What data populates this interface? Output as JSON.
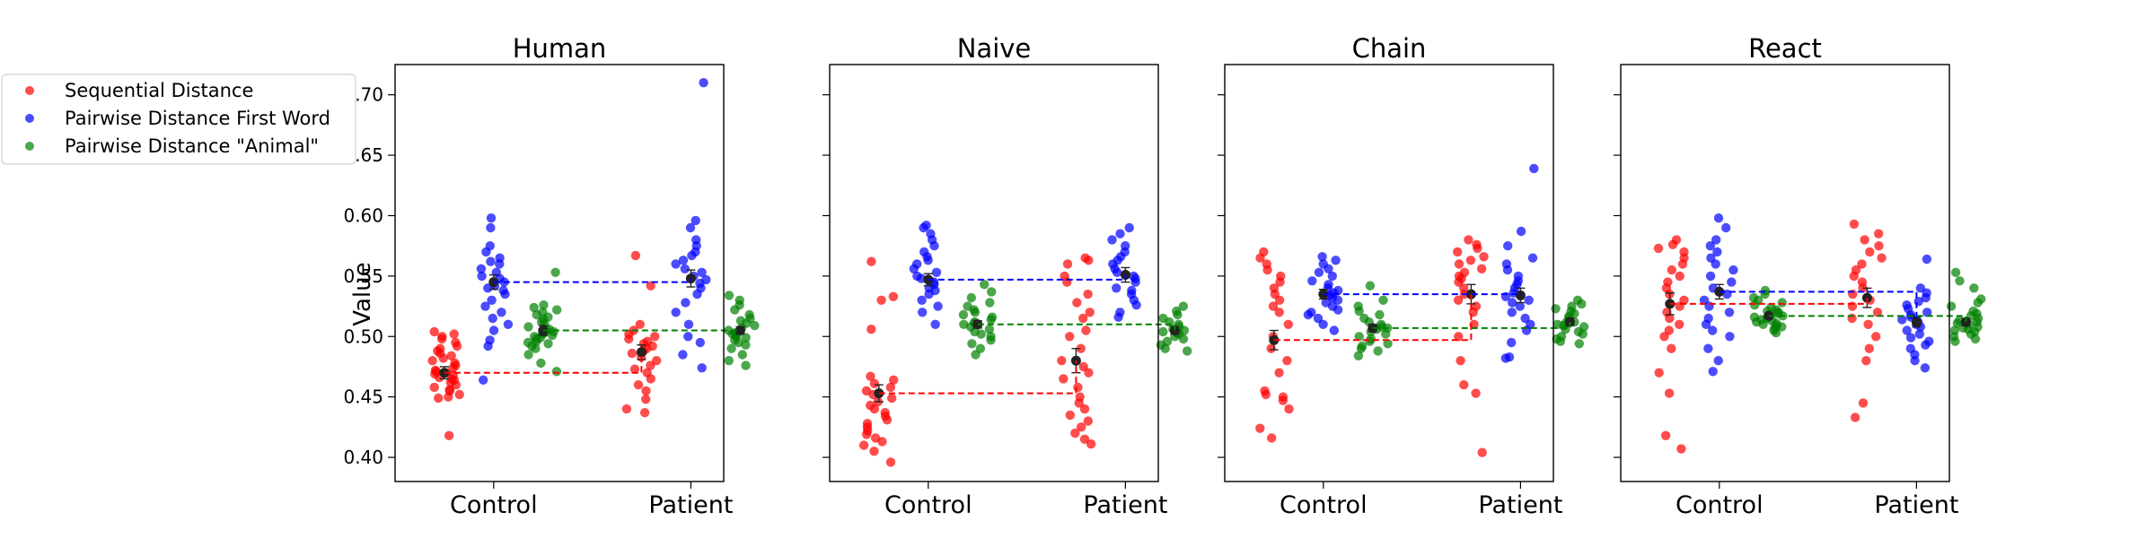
{
  "chart_data": {
    "type": "scatter",
    "ylabel": "Value",
    "ylim": [
      0.38,
      0.725
    ],
    "yticks": [
      0.4,
      0.45,
      0.5,
      0.55,
      0.6,
      0.65,
      0.7
    ],
    "ytick_labels": [
      "0.40",
      "0.45",
      "0.50",
      "0.55",
      "0.60",
      "0.65",
      "0.70"
    ],
    "categories": [
      "Control",
      "Patient"
    ],
    "legend": {
      "placement": "outside-left",
      "entries": [
        {
          "name": "Sequential Distance",
          "color": "#ff0000"
        },
        {
          "name": "Pairwise Distance First Word",
          "color": "#0000ff"
        },
        {
          "name": "Pairwise Distance \"Animal\"",
          "color": "#008000"
        }
      ]
    },
    "series_colors": [
      "#ff0000",
      "#0000ff",
      "#008000"
    ],
    "panels": [
      {
        "title": "Human",
        "groups": [
          {
            "category": "Control",
            "series": [
              {
                "mean": 0.47,
                "err": 0.005,
                "points": [
                  0.418,
                  0.449,
                  0.45,
                  0.452,
                  0.455,
                  0.456,
                  0.458,
                  0.46,
                  0.462,
                  0.464,
                  0.465,
                  0.466,
                  0.468,
                  0.469,
                  0.47,
                  0.471,
                  0.472,
                  0.474,
                  0.476,
                  0.478,
                  0.48,
                  0.482,
                  0.484,
                  0.486,
                  0.488,
                  0.49,
                  0.492,
                  0.495,
                  0.498,
                  0.5,
                  0.502,
                  0.504
                ]
              },
              {
                "mean": 0.545,
                "err": 0.006,
                "points": [
                  0.464,
                  0.492,
                  0.497,
                  0.505,
                  0.51,
                  0.515,
                  0.52,
                  0.525,
                  0.53,
                  0.535,
                  0.538,
                  0.54,
                  0.542,
                  0.545,
                  0.548,
                  0.55,
                  0.553,
                  0.556,
                  0.56,
                  0.562,
                  0.565,
                  0.57,
                  0.575,
                  0.59,
                  0.598
                ]
              },
              {
                "mean": 0.505,
                "err": 0.004,
                "points": [
                  0.471,
                  0.478,
                  0.485,
                  0.49,
                  0.492,
                  0.494,
                  0.495,
                  0.496,
                  0.498,
                  0.499,
                  0.5,
                  0.501,
                  0.502,
                  0.503,
                  0.504,
                  0.505,
                  0.506,
                  0.508,
                  0.51,
                  0.512,
                  0.514,
                  0.516,
                  0.518,
                  0.52,
                  0.522,
                  0.524,
                  0.526,
                  0.553
                ]
              }
            ]
          },
          {
            "category": "Patient",
            "series": [
              {
                "mean": 0.487,
                "err": 0.006,
                "points": [
                  0.437,
                  0.44,
                  0.448,
                  0.455,
                  0.46,
                  0.465,
                  0.47,
                  0.473,
                  0.476,
                  0.48,
                  0.483,
                  0.486,
                  0.488,
                  0.49,
                  0.492,
                  0.494,
                  0.496,
                  0.498,
                  0.5,
                  0.502,
                  0.505,
                  0.51,
                  0.542,
                  0.567
                ]
              },
              {
                "mean": 0.548,
                "err": 0.007,
                "points": [
                  0.474,
                  0.485,
                  0.495,
                  0.5,
                  0.51,
                  0.52,
                  0.528,
                  0.535,
                  0.54,
                  0.544,
                  0.547,
                  0.55,
                  0.553,
                  0.556,
                  0.56,
                  0.563,
                  0.567,
                  0.57,
                  0.575,
                  0.58,
                  0.59,
                  0.596,
                  0.71
                ]
              },
              {
                "mean": 0.505,
                "err": 0.003,
                "points": [
                  0.476,
                  0.48,
                  0.485,
                  0.49,
                  0.493,
                  0.495,
                  0.497,
                  0.499,
                  0.5,
                  0.501,
                  0.502,
                  0.503,
                  0.505,
                  0.507,
                  0.509,
                  0.511,
                  0.513,
                  0.515,
                  0.518,
                  0.522,
                  0.526,
                  0.53,
                  0.534
                ]
              }
            ]
          }
        ]
      },
      {
        "title": "Naive",
        "groups": [
          {
            "category": "Control",
            "series": [
              {
                "mean": 0.453,
                "err": 0.007,
                "points": [
                  0.396,
                  0.405,
                  0.41,
                  0.413,
                  0.416,
                  0.419,
                  0.422,
                  0.425,
                  0.428,
                  0.431,
                  0.434,
                  0.437,
                  0.44,
                  0.443,
                  0.446,
                  0.449,
                  0.452,
                  0.455,
                  0.458,
                  0.461,
                  0.464,
                  0.467,
                  0.506,
                  0.53,
                  0.533,
                  0.562
                ]
              },
              {
                "mean": 0.547,
                "err": 0.005,
                "points": [
                  0.51,
                  0.52,
                  0.525,
                  0.53,
                  0.535,
                  0.538,
                  0.54,
                  0.543,
                  0.545,
                  0.548,
                  0.55,
                  0.553,
                  0.556,
                  0.56,
                  0.563,
                  0.566,
                  0.57,
                  0.575,
                  0.58,
                  0.585,
                  0.59,
                  0.592
                ]
              },
              {
                "mean": 0.51,
                "err": 0.003,
                "points": [
                  0.485,
                  0.49,
                  0.494,
                  0.497,
                  0.5,
                  0.502,
                  0.504,
                  0.506,
                  0.508,
                  0.51,
                  0.511,
                  0.512,
                  0.514,
                  0.516,
                  0.518,
                  0.52,
                  0.522,
                  0.525,
                  0.528,
                  0.532,
                  0.537,
                  0.543
                ]
              }
            ]
          },
          {
            "category": "Patient",
            "series": [
              {
                "mean": 0.48,
                "err": 0.01,
                "points": [
                  0.411,
                  0.415,
                  0.42,
                  0.425,
                  0.43,
                  0.435,
                  0.44,
                  0.445,
                  0.45,
                  0.458,
                  0.465,
                  0.47,
                  0.475,
                  0.48,
                  0.49,
                  0.5,
                  0.505,
                  0.515,
                  0.52,
                  0.528,
                  0.535,
                  0.545,
                  0.55,
                  0.56,
                  0.563,
                  0.565
                ]
              },
              {
                "mean": 0.551,
                "err": 0.006,
                "points": [
                  0.516,
                  0.52,
                  0.526,
                  0.53,
                  0.535,
                  0.538,
                  0.54,
                  0.545,
                  0.548,
                  0.55,
                  0.553,
                  0.556,
                  0.56,
                  0.563,
                  0.566,
                  0.57,
                  0.575,
                  0.58,
                  0.585,
                  0.59
                ]
              },
              {
                "mean": 0.505,
                "err": 0.003,
                "points": [
                  0.488,
                  0.49,
                  0.493,
                  0.496,
                  0.498,
                  0.5,
                  0.502,
                  0.503,
                  0.504,
                  0.505,
                  0.506,
                  0.508,
                  0.51,
                  0.512,
                  0.515,
                  0.518,
                  0.521,
                  0.525
                ]
              }
            ]
          }
        ]
      },
      {
        "title": "Chain",
        "groups": [
          {
            "category": "Control",
            "series": [
              {
                "mean": 0.497,
                "err": 0.008,
                "points": [
                  0.416,
                  0.424,
                  0.44,
                  0.447,
                  0.45,
                  0.452,
                  0.455,
                  0.47,
                  0.48,
                  0.49,
                  0.5,
                  0.51,
                  0.52,
                  0.525,
                  0.53,
                  0.535,
                  0.54,
                  0.545,
                  0.55,
                  0.555,
                  0.56,
                  0.565,
                  0.57
                ]
              },
              {
                "mean": 0.535,
                "err": 0.004,
                "points": [
                  0.505,
                  0.51,
                  0.515,
                  0.518,
                  0.52,
                  0.522,
                  0.525,
                  0.528,
                  0.53,
                  0.532,
                  0.534,
                  0.536,
                  0.538,
                  0.54,
                  0.543,
                  0.546,
                  0.55,
                  0.553,
                  0.556,
                  0.56,
                  0.563,
                  0.566
                ]
              },
              {
                "mean": 0.507,
                "err": 0.003,
                "points": [
                  0.484,
                  0.488,
                  0.49,
                  0.492,
                  0.494,
                  0.496,
                  0.498,
                  0.5,
                  0.502,
                  0.504,
                  0.506,
                  0.507,
                  0.508,
                  0.51,
                  0.512,
                  0.515,
                  0.518,
                  0.521,
                  0.525,
                  0.53,
                  0.542
                ]
              }
            ]
          },
          {
            "category": "Patient",
            "series": [
              {
                "mean": 0.535,
                "err": 0.008,
                "points": [
                  0.404,
                  0.453,
                  0.46,
                  0.48,
                  0.5,
                  0.51,
                  0.52,
                  0.525,
                  0.53,
                  0.535,
                  0.54,
                  0.545,
                  0.548,
                  0.55,
                  0.553,
                  0.556,
                  0.56,
                  0.563,
                  0.566,
                  0.57,
                  0.573,
                  0.576,
                  0.58
                ]
              },
              {
                "mean": 0.534,
                "err": 0.006,
                "points": [
                  0.482,
                  0.483,
                  0.495,
                  0.505,
                  0.51,
                  0.515,
                  0.52,
                  0.525,
                  0.528,
                  0.53,
                  0.533,
                  0.536,
                  0.54,
                  0.543,
                  0.546,
                  0.55,
                  0.555,
                  0.56,
                  0.565,
                  0.575,
                  0.587,
                  0.639
                ]
              },
              {
                "mean": 0.512,
                "err": 0.003,
                "points": [
                  0.494,
                  0.496,
                  0.498,
                  0.5,
                  0.502,
                  0.504,
                  0.506,
                  0.508,
                  0.509,
                  0.51,
                  0.511,
                  0.512,
                  0.513,
                  0.515,
                  0.517,
                  0.519,
                  0.521,
                  0.523,
                  0.525,
                  0.527,
                  0.53
                ]
              }
            ]
          }
        ]
      },
      {
        "title": "React",
        "groups": [
          {
            "category": "Control",
            "series": [
              {
                "mean": 0.527,
                "err": 0.009,
                "points": [
                  0.407,
                  0.418,
                  0.453,
                  0.47,
                  0.49,
                  0.5,
                  0.505,
                  0.51,
                  0.515,
                  0.52,
                  0.525,
                  0.53,
                  0.535,
                  0.54,
                  0.545,
                  0.55,
                  0.555,
                  0.56,
                  0.565,
                  0.57,
                  0.573,
                  0.576,
                  0.58
                ]
              },
              {
                "mean": 0.537,
                "err": 0.006,
                "points": [
                  0.471,
                  0.48,
                  0.49,
                  0.5,
                  0.505,
                  0.51,
                  0.515,
                  0.52,
                  0.525,
                  0.53,
                  0.535,
                  0.54,
                  0.545,
                  0.55,
                  0.555,
                  0.56,
                  0.565,
                  0.57,
                  0.575,
                  0.58,
                  0.59,
                  0.598
                ]
              },
              {
                "mean": 0.517,
                "err": 0.002,
                "points": [
                  0.503,
                  0.505,
                  0.507,
                  0.508,
                  0.509,
                  0.51,
                  0.511,
                  0.512,
                  0.513,
                  0.514,
                  0.515,
                  0.516,
                  0.517,
                  0.518,
                  0.519,
                  0.52,
                  0.521,
                  0.522,
                  0.524,
                  0.526,
                  0.528,
                  0.53,
                  0.532,
                  0.535,
                  0.538
                ]
              }
            ]
          },
          {
            "category": "Patient",
            "series": [
              {
                "mean": 0.532,
                "err": 0.008,
                "points": [
                  0.433,
                  0.445,
                  0.48,
                  0.49,
                  0.5,
                  0.51,
                  0.515,
                  0.52,
                  0.525,
                  0.53,
                  0.535,
                  0.54,
                  0.545,
                  0.55,
                  0.555,
                  0.56,
                  0.565,
                  0.57,
                  0.575,
                  0.58,
                  0.585,
                  0.593
                ]
              },
              {
                "mean": 0.512,
                "err": 0.004,
                "points": [
                  0.474,
                  0.48,
                  0.485,
                  0.49,
                  0.493,
                  0.496,
                  0.499,
                  0.502,
                  0.505,
                  0.508,
                  0.51,
                  0.512,
                  0.514,
                  0.516,
                  0.518,
                  0.52,
                  0.523,
                  0.526,
                  0.529,
                  0.532,
                  0.536,
                  0.54,
                  0.564
                ]
              },
              {
                "mean": 0.512,
                "err": 0.003,
                "points": [
                  0.496,
                  0.498,
                  0.5,
                  0.502,
                  0.504,
                  0.505,
                  0.506,
                  0.507,
                  0.508,
                  0.51,
                  0.511,
                  0.512,
                  0.513,
                  0.515,
                  0.517,
                  0.519,
                  0.521,
                  0.525,
                  0.528,
                  0.531,
                  0.54,
                  0.546,
                  0.553
                ]
              }
            ]
          }
        ]
      }
    ]
  }
}
